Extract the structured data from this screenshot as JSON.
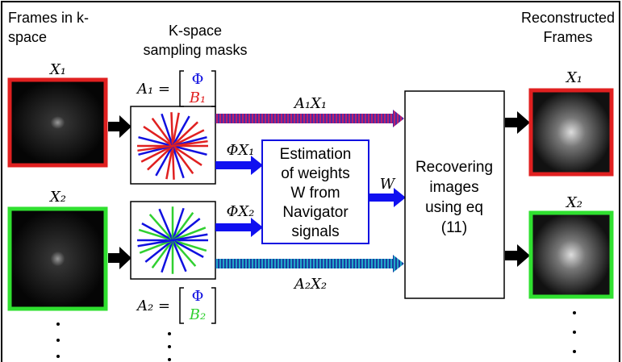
{
  "headers": {
    "input": [
      "Frames in k-",
      "space"
    ],
    "masks": [
      "K-space",
      "sampling masks"
    ],
    "output": [
      "Reconstructed",
      "Frames"
    ]
  },
  "frames": {
    "input_1": "X₁",
    "input_2": "X₂",
    "output_1": "X₁",
    "output_2": "X₂"
  },
  "masks": {
    "mask_1": {
      "lhs": "A₁ =",
      "top": "Φ",
      "bottom": "B₁"
    },
    "mask_2": {
      "lhs": "A₂ =",
      "top": "Φ",
      "bottom": "B₂"
    }
  },
  "arrows": {
    "a1x1": "A₁X₁",
    "phix1": "ΦX₁",
    "phix2": "ΦX₂",
    "w": "W",
    "a2x2": "A₂X₂"
  },
  "boxes": {
    "estimation": [
      "Estimation",
      "of weights",
      "W from",
      "Navigator",
      "signals"
    ],
    "recovering": [
      "Recovering",
      "images",
      "using eq",
      "(11)"
    ]
  }
}
